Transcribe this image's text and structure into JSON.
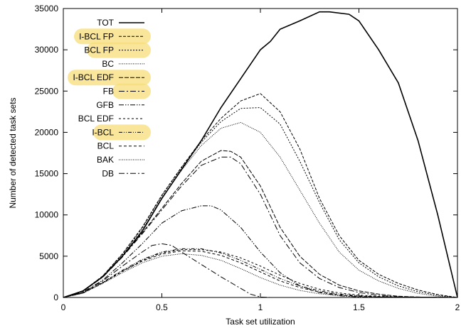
{
  "chart_data": {
    "type": "line",
    "xlabel": "Task set utilization",
    "ylabel": "Number of detected task sets",
    "xlim": [
      0,
      2
    ],
    "ylim": [
      0,
      35000
    ],
    "xticks": [
      0,
      0.5,
      1,
      1.5,
      2
    ],
    "xtick_labels": [
      "0",
      "0.5",
      "1",
      "1.5",
      "2"
    ],
    "yticks": [
      0,
      5000,
      10000,
      15000,
      20000,
      25000,
      30000,
      35000
    ],
    "ytick_labels": [
      "0",
      "5000",
      "10000",
      "15000",
      "20000",
      "25000",
      "30000",
      "35000"
    ],
    "grid": false,
    "legend_position": "top-left",
    "highlight_color": "#f7dd7a",
    "series": [
      {
        "name": "TOT",
        "style": "solid",
        "highlighted": false,
        "points": [
          [
            0,
            0
          ],
          [
            0.1,
            800
          ],
          [
            0.2,
            2500
          ],
          [
            0.3,
            5000
          ],
          [
            0.4,
            8000
          ],
          [
            0.5,
            12000
          ],
          [
            0.6,
            15500
          ],
          [
            0.7,
            19000
          ],
          [
            0.8,
            23000
          ],
          [
            0.9,
            26500
          ],
          [
            1.0,
            30000
          ],
          [
            1.05,
            31000
          ],
          [
            1.1,
            32500
          ],
          [
            1.2,
            33500
          ],
          [
            1.3,
            34600
          ],
          [
            1.35,
            34600
          ],
          [
            1.45,
            34300
          ],
          [
            1.5,
            33500
          ],
          [
            1.6,
            30000
          ],
          [
            1.7,
            26000
          ],
          [
            1.8,
            19000
          ],
          [
            1.9,
            10000
          ],
          [
            2.0,
            0
          ]
        ]
      },
      {
        "name": "I-BCL FP",
        "style": "dashed",
        "highlighted": true,
        "points": [
          [
            0,
            0
          ],
          [
            0.1,
            800
          ],
          [
            0.2,
            2600
          ],
          [
            0.3,
            5300
          ],
          [
            0.4,
            8500
          ],
          [
            0.5,
            12400
          ],
          [
            0.6,
            15800
          ],
          [
            0.7,
            19000
          ],
          [
            0.8,
            21700
          ],
          [
            0.9,
            23800
          ],
          [
            1.0,
            24700
          ],
          [
            1.1,
            22500
          ],
          [
            1.2,
            18000
          ],
          [
            1.3,
            12000
          ],
          [
            1.4,
            7500
          ],
          [
            1.5,
            4500
          ],
          [
            1.6,
            2800
          ],
          [
            1.7,
            1700
          ],
          [
            1.8,
            900
          ],
          [
            1.9,
            350
          ],
          [
            2.0,
            0
          ]
        ]
      },
      {
        "name": "BCL FP",
        "style": "dotted",
        "highlighted": true,
        "points": [
          [
            0,
            0
          ],
          [
            0.1,
            800
          ],
          [
            0.2,
            2600
          ],
          [
            0.3,
            5200
          ],
          [
            0.4,
            8400
          ],
          [
            0.5,
            12300
          ],
          [
            0.6,
            15700
          ],
          [
            0.7,
            18800
          ],
          [
            0.8,
            21300
          ],
          [
            0.9,
            22900
          ],
          [
            1.0,
            23000
          ],
          [
            1.1,
            21000
          ],
          [
            1.2,
            16500
          ],
          [
            1.3,
            11500
          ],
          [
            1.4,
            7000
          ],
          [
            1.5,
            4200
          ],
          [
            1.6,
            2500
          ],
          [
            1.7,
            1400
          ],
          [
            1.8,
            700
          ],
          [
            1.9,
            250
          ],
          [
            2.0,
            0
          ]
        ]
      },
      {
        "name": "BC",
        "style": "fine-dotted",
        "highlighted": false,
        "points": [
          [
            0,
            0
          ],
          [
            0.1,
            780
          ],
          [
            0.2,
            2550
          ],
          [
            0.3,
            5100
          ],
          [
            0.4,
            8200
          ],
          [
            0.5,
            12100
          ],
          [
            0.6,
            15400
          ],
          [
            0.7,
            18400
          ],
          [
            0.8,
            20500
          ],
          [
            0.9,
            21200
          ],
          [
            1.0,
            20000
          ],
          [
            1.1,
            17000
          ],
          [
            1.2,
            13000
          ],
          [
            1.3,
            9000
          ],
          [
            1.4,
            5500
          ],
          [
            1.5,
            3300
          ],
          [
            1.6,
            2000
          ],
          [
            1.7,
            1100
          ],
          [
            1.8,
            500
          ],
          [
            1.9,
            150
          ],
          [
            2.0,
            0
          ]
        ]
      },
      {
        "name": "I-BCL EDF",
        "style": "long-dashed",
        "highlighted": true,
        "points": [
          [
            0,
            0
          ],
          [
            0.1,
            750
          ],
          [
            0.2,
            2500
          ],
          [
            0.3,
            5000
          ],
          [
            0.4,
            7800
          ],
          [
            0.5,
            10800
          ],
          [
            0.6,
            13800
          ],
          [
            0.7,
            16500
          ],
          [
            0.8,
            17800
          ],
          [
            0.85,
            17700
          ],
          [
            0.9,
            17000
          ],
          [
            1.0,
            13500
          ],
          [
            1.1,
            8500
          ],
          [
            1.2,
            5000
          ],
          [
            1.3,
            2800
          ],
          [
            1.4,
            1500
          ],
          [
            1.5,
            800
          ],
          [
            1.6,
            400
          ],
          [
            1.7,
            150
          ],
          [
            1.8,
            50
          ],
          [
            2.0,
            0
          ]
        ]
      },
      {
        "name": "FB",
        "style": "dash-dot",
        "highlighted": true,
        "points": [
          [
            0,
            0
          ],
          [
            0.1,
            740
          ],
          [
            0.2,
            2450
          ],
          [
            0.3,
            4900
          ],
          [
            0.4,
            7700
          ],
          [
            0.5,
            10600
          ],
          [
            0.6,
            13500
          ],
          [
            0.7,
            16000
          ],
          [
            0.8,
            17000
          ],
          [
            0.85,
            17000
          ],
          [
            0.9,
            16200
          ],
          [
            1.0,
            12500
          ],
          [
            1.1,
            7500
          ],
          [
            1.2,
            4200
          ],
          [
            1.3,
            2300
          ],
          [
            1.4,
            1200
          ],
          [
            1.5,
            600
          ],
          [
            1.6,
            250
          ],
          [
            1.7,
            80
          ],
          [
            2.0,
            0
          ]
        ]
      },
      {
        "name": "GFB",
        "style": "dash-dot-dot",
        "highlighted": false,
        "points": [
          [
            0,
            0
          ],
          [
            0.1,
            650
          ],
          [
            0.2,
            2100
          ],
          [
            0.3,
            4200
          ],
          [
            0.4,
            6500
          ],
          [
            0.5,
            9000
          ],
          [
            0.6,
            10500
          ],
          [
            0.7,
            11100
          ],
          [
            0.75,
            11100
          ],
          [
            0.8,
            10600
          ],
          [
            0.9,
            8500
          ],
          [
            1.0,
            5500
          ],
          [
            1.1,
            3000
          ],
          [
            1.2,
            1400
          ],
          [
            1.3,
            600
          ],
          [
            1.4,
            200
          ],
          [
            1.5,
            60
          ],
          [
            2.0,
            0
          ]
        ]
      },
      {
        "name": "BCL EDF",
        "style": "short-dashed",
        "highlighted": false,
        "points": [
          [
            0,
            0
          ],
          [
            0.1,
            550
          ],
          [
            0.2,
            1800
          ],
          [
            0.3,
            3200
          ],
          [
            0.4,
            4500
          ],
          [
            0.5,
            5400
          ],
          [
            0.6,
            5800
          ],
          [
            0.7,
            5800
          ],
          [
            0.8,
            5500
          ],
          [
            0.9,
            4800
          ],
          [
            1.0,
            3800
          ],
          [
            1.1,
            2700
          ],
          [
            1.2,
            1700
          ],
          [
            1.3,
            1000
          ],
          [
            1.4,
            550
          ],
          [
            1.5,
            280
          ],
          [
            1.6,
            130
          ],
          [
            1.7,
            50
          ],
          [
            2.0,
            0
          ]
        ]
      },
      {
        "name": "I-BCL",
        "style": "dash-dot-dot-fine",
        "highlighted": true,
        "points": [
          [
            0,
            0
          ],
          [
            0.1,
            560
          ],
          [
            0.2,
            1850
          ],
          [
            0.3,
            3300
          ],
          [
            0.4,
            4600
          ],
          [
            0.5,
            5500
          ],
          [
            0.6,
            5900
          ],
          [
            0.7,
            5900
          ],
          [
            0.8,
            5400
          ],
          [
            0.9,
            4500
          ],
          [
            1.0,
            3400
          ],
          [
            1.1,
            2300
          ],
          [
            1.2,
            1400
          ],
          [
            1.3,
            800
          ],
          [
            1.4,
            400
          ],
          [
            1.5,
            200
          ],
          [
            1.6,
            90
          ],
          [
            2.0,
            0
          ]
        ]
      },
      {
        "name": "BCL",
        "style": "medium-dashed",
        "highlighted": false,
        "points": [
          [
            0,
            0
          ],
          [
            0.1,
            540
          ],
          [
            0.2,
            1750
          ],
          [
            0.3,
            3150
          ],
          [
            0.4,
            4400
          ],
          [
            0.5,
            5250
          ],
          [
            0.6,
            5650
          ],
          [
            0.7,
            5600
          ],
          [
            0.8,
            5100
          ],
          [
            0.9,
            4200
          ],
          [
            1.0,
            3100
          ],
          [
            1.1,
            2000
          ],
          [
            1.2,
            1200
          ],
          [
            1.3,
            650
          ],
          [
            1.4,
            320
          ],
          [
            1.5,
            150
          ],
          [
            1.6,
            60
          ],
          [
            2.0,
            0
          ]
        ]
      },
      {
        "name": "BAK",
        "style": "fine-dotted",
        "highlighted": false,
        "points": [
          [
            0,
            0
          ],
          [
            0.1,
            520
          ],
          [
            0.2,
            1700
          ],
          [
            0.3,
            3000
          ],
          [
            0.4,
            4200
          ],
          [
            0.5,
            5000
          ],
          [
            0.6,
            5300
          ],
          [
            0.7,
            5100
          ],
          [
            0.8,
            4500
          ],
          [
            0.9,
            3500
          ],
          [
            1.0,
            2400
          ],
          [
            1.1,
            1500
          ],
          [
            1.2,
            850
          ],
          [
            1.3,
            450
          ],
          [
            1.4,
            220
          ],
          [
            1.5,
            100
          ],
          [
            2.0,
            0
          ]
        ]
      },
      {
        "name": "DB",
        "style": "dash-dot",
        "highlighted": false,
        "points": [
          [
            0,
            0
          ],
          [
            0.1,
            600
          ],
          [
            0.2,
            2000
          ],
          [
            0.3,
            3800
          ],
          [
            0.4,
            5500
          ],
          [
            0.45,
            6300
          ],
          [
            0.5,
            6500
          ],
          [
            0.55,
            6300
          ],
          [
            0.6,
            5500
          ],
          [
            0.7,
            4000
          ],
          [
            0.8,
            2500
          ],
          [
            0.9,
            1100
          ],
          [
            0.95,
            400
          ],
          [
            1.0,
            50
          ],
          [
            1.05,
            0
          ],
          [
            2.0,
            0
          ]
        ]
      }
    ]
  }
}
